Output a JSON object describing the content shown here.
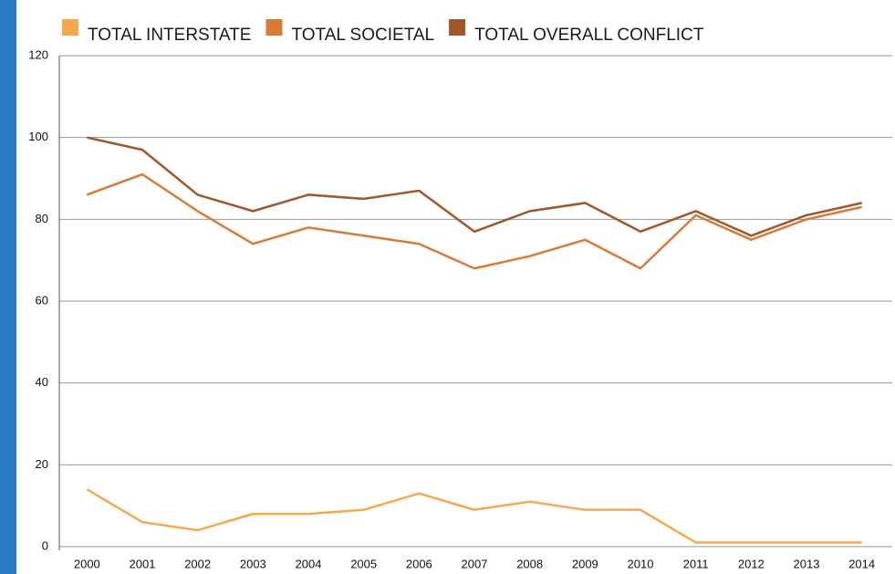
{
  "chart_data": {
    "type": "line",
    "categories": [
      "2000",
      "2001",
      "2002",
      "2003",
      "2004",
      "2005",
      "2006",
      "2007",
      "2008",
      "2009",
      "2010",
      "2011",
      "2012",
      "2013",
      "2014"
    ],
    "series": [
      {
        "name": "TOTAL INTERSTATE",
        "color": "#f5a94e",
        "values": [
          14,
          6,
          4,
          8,
          8,
          9,
          13,
          9,
          11,
          9,
          9,
          1,
          1,
          1,
          1
        ]
      },
      {
        "name": "TOTAL SOCIETAL",
        "color": "#d97b35",
        "values": [
          86,
          91,
          82,
          74,
          78,
          76,
          74,
          68,
          71,
          75,
          68,
          81,
          75,
          80,
          83
        ]
      },
      {
        "name": "TOTAL OVERALL CONFLICT",
        "color": "#a0572a",
        "values": [
          100,
          97,
          86,
          82,
          86,
          85,
          87,
          77,
          82,
          84,
          77,
          82,
          76,
          81,
          84
        ]
      }
    ],
    "ylim": [
      0,
      120
    ],
    "yticks": [
      0,
      20,
      40,
      60,
      80,
      100,
      120
    ],
    "grid": true,
    "legend": "top"
  }
}
